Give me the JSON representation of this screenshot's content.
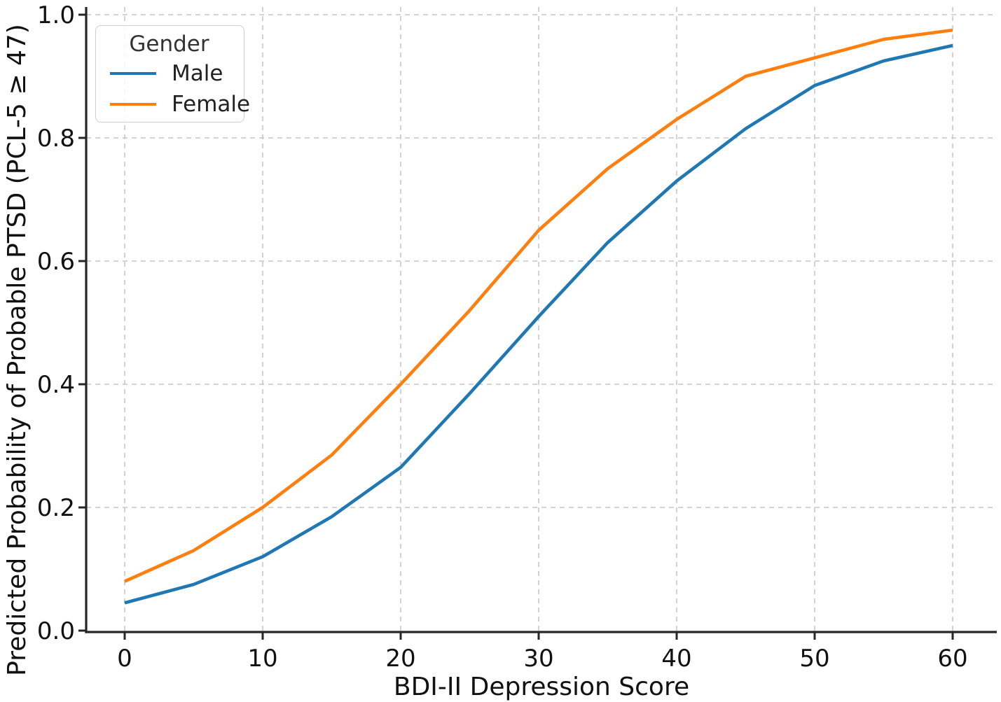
{
  "chart_data": {
    "type": "line",
    "title": "",
    "xlabel": "BDI-II Depression Score",
    "ylabel": "Predicted Probability of Probable PTSD (PCL-5 ≥ 47)",
    "x": [
      0,
      5,
      10,
      15,
      20,
      25,
      30,
      35,
      40,
      45,
      50,
      55,
      60
    ],
    "series": [
      {
        "name": "Male",
        "color": "#1f77b4",
        "values": [
          0.045,
          0.075,
          0.12,
          0.185,
          0.265,
          0.385,
          0.51,
          0.63,
          0.73,
          0.815,
          0.885,
          0.925,
          0.95
        ]
      },
      {
        "name": "Female",
        "color": "#ff7f0e",
        "values": [
          0.08,
          0.13,
          0.2,
          0.285,
          0.4,
          0.52,
          0.65,
          0.75,
          0.83,
          0.9,
          0.93,
          0.96,
          0.975
        ]
      }
    ],
    "xticks": [
      "0",
      "10",
      "20",
      "30",
      "40",
      "50",
      "60"
    ],
    "yticks": [
      "0.0",
      "0.2",
      "0.4",
      "0.6",
      "0.8",
      "1.0"
    ],
    "xlim": [
      -3,
      63
    ],
    "ylim": [
      0.0,
      1.0
    ],
    "grid": true,
    "legend": {
      "title": "Gender",
      "position": "upper left",
      "entries": [
        "Male",
        "Female"
      ]
    }
  },
  "styles": {
    "male_color": "#1f77b4",
    "female_color": "#ff7f0e",
    "grid_color": "#c7c7c7",
    "axis_color": "#262626",
    "text_color": "#111111",
    "background": "#ffffff"
  }
}
